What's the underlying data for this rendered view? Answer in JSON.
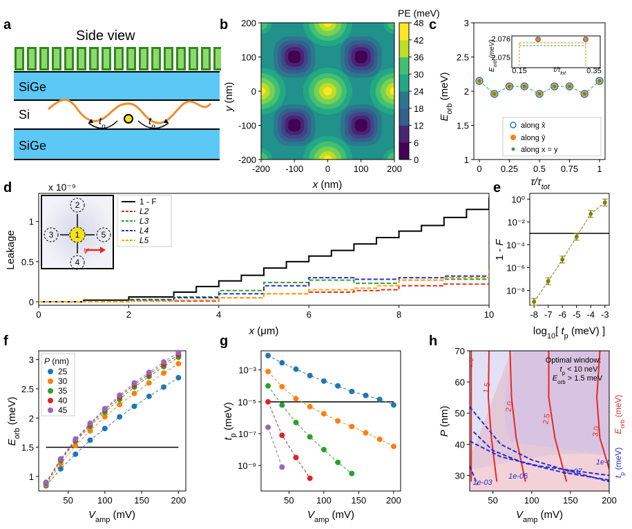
{
  "panel_letters": [
    "a",
    "b",
    "c",
    "d",
    "e",
    "f",
    "g",
    "h"
  ],
  "colors": {
    "sige": "#5bc8f5",
    "gate_dark": "#2f8a1e",
    "gate_light": "#8fd86f",
    "wave": "#f28c28",
    "dot": "#f5e11a",
    "blue": "#1f77b4",
    "orange": "#ff7f0e",
    "green": "#2ca02c",
    "red": "#d62728",
    "purple": "#9467bd",
    "olive": "#808000",
    "viridis": [
      "#440154",
      "#482475",
      "#414487",
      "#355f8d",
      "#2a788e",
      "#21918c",
      "#22a884",
      "#44bf70",
      "#7ad151",
      "#bddf26",
      "#fde725"
    ]
  },
  "panel_a": {
    "title": "Side view",
    "layer_top": "SiGe",
    "layer_mid": "Si",
    "layer_bot": "SiGe",
    "tp_left": "tp",
    "tp_right": "tp"
  },
  "panel_b": {
    "colorbar_label": "PE (meV)",
    "colorbar_ticks": [
      "48",
      "42",
      "36",
      "30",
      "24",
      "18",
      "12",
      "6",
      "0"
    ],
    "xlabel": "x (nm)",
    "ylabel": "y (nm)",
    "xticks": [
      "-200",
      "-100",
      "0",
      "100",
      "200"
    ],
    "yticks": [
      "200",
      "100",
      "0",
      "-100",
      "-200"
    ]
  },
  "panel_c": {
    "ylabel": "Eorb (meV)",
    "xlabel": "τ/τtot",
    "yticks": [
      "3",
      "2.5",
      "2",
      "1.5",
      "1"
    ],
    "xticks": [
      "0",
      "0.25",
      "0.5",
      "0.75",
      "1"
    ],
    "legend": [
      "along x̂",
      "along ŷ",
      "along x = y"
    ],
    "inset": {
      "yticks": [
        "2.076",
        "2.075"
      ],
      "xticks": [
        "0.15",
        "0.35"
      ],
      "ylabel": "Eorb (meV)",
      "xlabel": "τ/τtot"
    }
  },
  "panel_d": {
    "scale_label": "x 10⁻⁹",
    "ylabel": "Leakage",
    "xlabel": "x (μm)",
    "yticks": [
      "1",
      "0.5",
      "0"
    ],
    "xticks": [
      "0",
      "2",
      "4",
      "6",
      "8",
      "10"
    ],
    "legend": [
      "1 - F",
      "L2",
      "L3",
      "L4",
      "L5"
    ],
    "inset_dots": [
      "1",
      "2",
      "3",
      "4",
      "5"
    ],
    "inset_v": "v"
  },
  "panel_e": {
    "ylabel": "1 - F",
    "xlabel": "log10[ tp (meV) ]",
    "yticks": [
      "10⁰",
      "10⁻²",
      "10⁻⁴",
      "10⁻⁶",
      "10⁻⁸"
    ],
    "xticks": [
      "-8",
      "-7",
      "-6",
      "-5",
      "-4",
      "-3"
    ]
  },
  "panel_f": {
    "ylabel": "Eorb (meV)",
    "xlabel": "Vamp (mV)",
    "legend_title": "P (nm)",
    "legend": [
      "25",
      "30",
      "35",
      "40",
      "45"
    ],
    "yticks": [
      "3",
      "2.5",
      "2",
      "1.5",
      "1"
    ],
    "xticks": [
      "50",
      "100",
      "150",
      "200"
    ]
  },
  "panel_g": {
    "ylabel": "tp (meV)",
    "xlabel": "Vamp (mV)",
    "yticks": [
      "10⁻³",
      "10⁻⁵",
      "10⁻⁷",
      "10⁻⁹"
    ],
    "xticks": [
      "50",
      "100",
      "150",
      "200"
    ]
  },
  "panel_h": {
    "ylabel": "P (nm)",
    "xlabel": "Vamp (mV)",
    "right_label_red": "Eorb (meV)",
    "right_label_blue": "tp (meV)",
    "yticks": [
      "70",
      "60",
      "50",
      "40",
      "30"
    ],
    "xticks": [
      "50",
      "100",
      "150",
      "200"
    ],
    "red_labels": [
      "1.0",
      "1.5",
      "2.0",
      "2.5",
      "3.0"
    ],
    "blue_labels": [
      "1e-03",
      "1e-05",
      "1e-07",
      "1e-09"
    ],
    "note": [
      "Optimal window:",
      "tp < 10 neV",
      "Eorb > 1.5 meV"
    ]
  },
  "chart_data": [
    {
      "type": "line",
      "panel": "c",
      "xlabel": "τ/τtot",
      "ylabel": "Eorb (meV)",
      "xlim": [
        0,
        1
      ],
      "ylim": [
        1,
        3
      ],
      "x": [
        0,
        0.125,
        0.25,
        0.375,
        0.5,
        0.625,
        0.75,
        0.875,
        1
      ],
      "series": [
        {
          "name": "along x̂",
          "values": [
            2.15,
            1.96,
            2.07,
            2.07,
            1.96,
            2.07,
            2.07,
            1.96,
            2.15
          ]
        },
        {
          "name": "along ŷ",
          "values": [
            2.15,
            1.96,
            2.07,
            2.07,
            1.96,
            2.07,
            2.07,
            1.96,
            2.15
          ]
        },
        {
          "name": "along x = y",
          "values": [
            2.15,
            1.96,
            2.07,
            2.07,
            1.96,
            2.07,
            2.07,
            1.96,
            2.15
          ]
        }
      ]
    },
    {
      "type": "line",
      "panel": "d",
      "xlabel": "x (μm)",
      "ylabel": "Leakage",
      "xlim": [
        0,
        10
      ],
      "ylim": [
        0,
        1.35
      ],
      "series": [
        {
          "name": "1 - F",
          "x": [
            0,
            1,
            2,
            3,
            3.5,
            4,
            4.5,
            5,
            5.5,
            6,
            6.5,
            7,
            7.5,
            8,
            8.5,
            9,
            9.5,
            10
          ],
          "values": [
            0,
            0.02,
            0.06,
            0.12,
            0.19,
            0.26,
            0.33,
            0.42,
            0.5,
            0.57,
            0.64,
            0.72,
            0.8,
            0.88,
            0.95,
            1.05,
            1.15,
            1.3
          ]
        },
        {
          "name": "L2",
          "x": [
            0,
            2,
            4,
            5,
            6,
            7,
            7.6,
            8,
            9,
            10
          ],
          "values": [
            0,
            0.01,
            0.05,
            0.1,
            0.12,
            0.14,
            0.15,
            0.2,
            0.22,
            0.23
          ]
        },
        {
          "name": "L3",
          "x": [
            0,
            2,
            3,
            4,
            5,
            6,
            7,
            8,
            9,
            10
          ],
          "values": [
            0,
            0.03,
            0.06,
            0.14,
            0.24,
            0.27,
            0.23,
            0.27,
            0.28,
            0.27
          ]
        },
        {
          "name": "L4",
          "x": [
            0,
            2,
            3,
            4,
            5,
            6,
            7,
            8,
            9,
            10
          ],
          "values": [
            0,
            0.02,
            0.05,
            0.1,
            0.2,
            0.3,
            0.28,
            0.3,
            0.32,
            0.33
          ]
        },
        {
          "name": "L5",
          "x": [
            0,
            2,
            3,
            4,
            5,
            6,
            7,
            7.5,
            8,
            9,
            10
          ],
          "values": [
            0,
            0.01,
            0.02,
            0.05,
            0.1,
            0.15,
            0.17,
            0.2,
            0.27,
            0.3,
            0.4
          ]
        }
      ]
    },
    {
      "type": "scatter",
      "panel": "e",
      "xlabel": "log10[ tp (meV) ]",
      "ylabel": "1 - F",
      "xlim": [
        -8.3,
        -2.7
      ],
      "ylim_log10": [
        -9.3,
        0.5
      ],
      "x": [
        -8,
        -7,
        -6,
        -5,
        -4,
        -3
      ],
      "values_log10": [
        -9.0,
        -7.2,
        -5.3,
        -3.3,
        -1.3,
        -0.3
      ],
      "threshold_log10": -3
    },
    {
      "type": "line",
      "panel": "f",
      "xlabel": "Vamp (mV)",
      "ylabel": "Eorb (meV)",
      "xlim": [
        10,
        210
      ],
      "ylim": [
        0.75,
        3.15
      ],
      "threshold": 1.5,
      "x": [
        20,
        40,
        60,
        80,
        100,
        120,
        140,
        160,
        180,
        200
      ],
      "series": [
        {
          "name": "25",
          "values": [
            0.84,
            1.13,
            1.38,
            1.62,
            1.82,
            2.02,
            2.2,
            2.37,
            2.53,
            2.69
          ]
        },
        {
          "name": "30",
          "values": [
            0.86,
            1.22,
            1.53,
            1.78,
            2.02,
            2.23,
            2.42,
            2.6,
            2.77,
            2.93
          ]
        },
        {
          "name": "35",
          "values": [
            0.88,
            1.27,
            1.6,
            1.86,
            2.1,
            2.32,
            2.53,
            2.71,
            2.88,
            3.04
          ]
        },
        {
          "name": "40",
          "values": [
            0.89,
            1.29,
            1.62,
            1.89,
            2.14,
            2.36,
            2.57,
            2.75,
            2.92,
            3.08
          ]
        },
        {
          "name": "45",
          "values": [
            0.9,
            1.3,
            1.64,
            1.91,
            2.16,
            2.39,
            2.6,
            2.78,
            2.96,
            3.12
          ]
        }
      ]
    },
    {
      "type": "line",
      "panel": "g",
      "xlabel": "Vamp (mV)",
      "ylabel": "tp (meV)",
      "xlim": [
        10,
        210
      ],
      "ylim_log10": [
        -10.6,
        -1.8
      ],
      "threshold_log10": -5,
      "series": [
        {
          "name": "25",
          "x": [
            20,
            40,
            60,
            80,
            100,
            120,
            140,
            160,
            180,
            200
          ],
          "values_log10": [
            -2.1,
            -2.55,
            -2.95,
            -3.35,
            -3.7,
            -4.0,
            -4.35,
            -4.6,
            -4.85,
            -5.2
          ]
        },
        {
          "name": "30",
          "x": [
            20,
            40,
            60,
            80,
            100,
            120,
            140,
            160,
            180,
            200
          ],
          "values_log10": [
            -3.1,
            -4.05,
            -4.8,
            -5.3,
            -5.75,
            -6.2,
            -6.55,
            -6.95,
            -7.35,
            -7.8
          ]
        },
        {
          "name": "35",
          "x": [
            20,
            40,
            60,
            80,
            100,
            120,
            140
          ],
          "values_log10": [
            -4.0,
            -5.2,
            -6.3,
            -7.2,
            -8.0,
            -8.8,
            -9.5
          ]
        },
        {
          "name": "40",
          "x": [
            20,
            40,
            60,
            80
          ],
          "values_log10": [
            -5.0,
            -7.1,
            -8.5,
            -9.8
          ]
        },
        {
          "name": "45",
          "x": [
            20,
            40
          ],
          "values_log10": [
            -6.6,
            -9.1
          ]
        }
      ]
    }
  ]
}
